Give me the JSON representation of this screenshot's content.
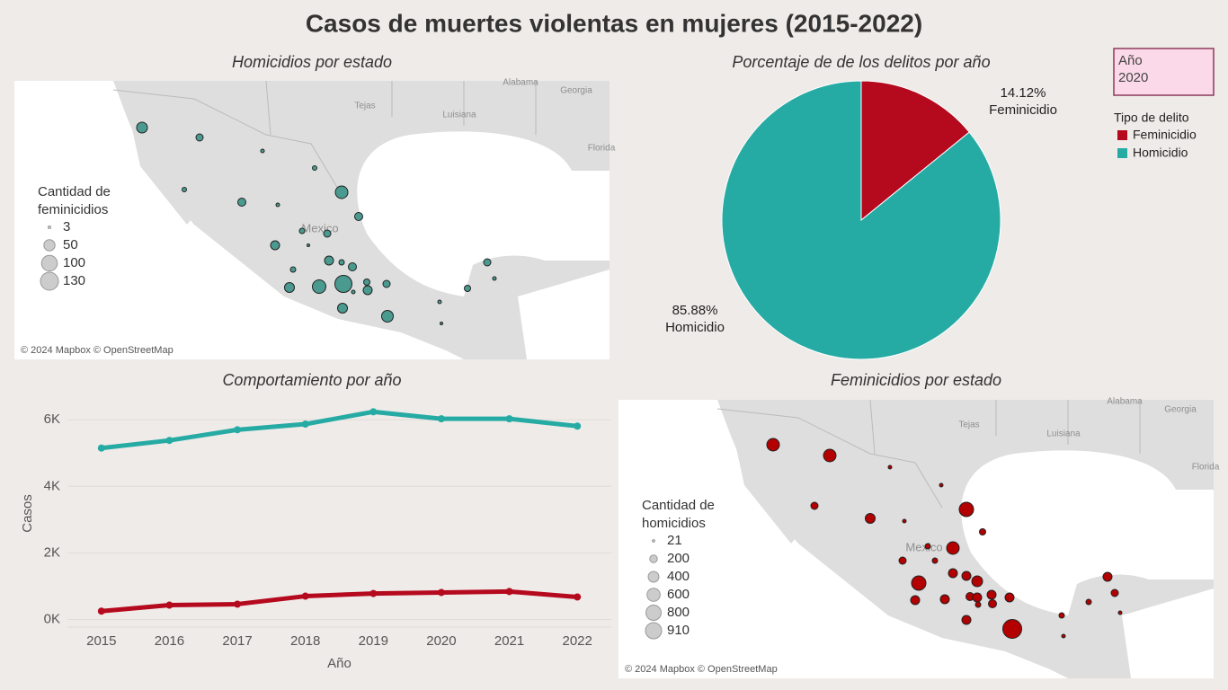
{
  "title": "Casos de muertes violentas en mujeres (2015-2022)",
  "filter": {
    "label": "Año",
    "value": "2020"
  },
  "chart_data": [
    {
      "type": "map",
      "title": "Homicidios por estado",
      "legend_title": [
        "Cantidad de",
        "feminicidios"
      ],
      "legend_sizes": [
        3,
        50,
        100,
        130
      ],
      "color": "#4a9a8f",
      "place_labels": [
        "Tejas",
        "Luisiana",
        "Alabama",
        "Georgia",
        "Florida",
        "Mexico"
      ],
      "attribution": "© 2024 Mapbox © OpenStreetMap"
    },
    {
      "type": "pie",
      "title": "Porcentaje de de los delitos por año",
      "legend_title": "Tipo de delito",
      "categories": [
        "Feminicidio",
        "Homicidio"
      ],
      "values": [
        14.12,
        85.88
      ],
      "value_labels": [
        "14.12%",
        "85.88%"
      ],
      "colors": [
        "#b5091e",
        "#26aba4"
      ]
    },
    {
      "type": "line",
      "title": "Comportamiento por año",
      "x_label": "Año",
      "y_label": "Casos",
      "categories": [
        "2015",
        "2016",
        "2017",
        "2018",
        "2019",
        "2020",
        "2021",
        "2022"
      ],
      "series": [
        {
          "color": "#26aba4",
          "values": [
            5150,
            5380,
            5700,
            5870,
            6240,
            6030,
            6030,
            5810
          ]
        },
        {
          "color": "#b5091e",
          "values": [
            250,
            430,
            460,
            700,
            780,
            810,
            840,
            675
          ]
        }
      ],
      "ylim": [
        -230,
        6600
      ],
      "yticks": [
        {
          "value": 0,
          "label": "0K"
        },
        {
          "value": 2000,
          "label": "2K"
        },
        {
          "value": 4000,
          "label": "4K"
        },
        {
          "value": 6000,
          "label": "6K"
        }
      ],
      "grid": true
    },
    {
      "type": "map",
      "title": "Feminicidios por estado",
      "legend_title": [
        "Cantidad de",
        "homicidios"
      ],
      "legend_sizes": [
        21,
        200,
        400,
        600,
        800,
        910
      ],
      "color": "#b30000",
      "place_labels": [
        "Tejas",
        "Luisiana",
        "Alabama",
        "Georgia",
        "Florida",
        "Mexico"
      ],
      "attribution": "© 2024 Mapbox © OpenStreetMap"
    }
  ]
}
